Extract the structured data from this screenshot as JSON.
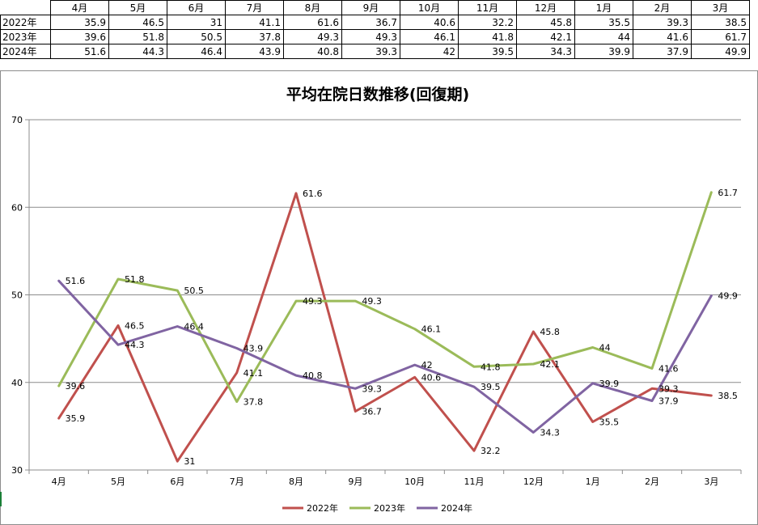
{
  "table": {
    "months": [
      "4月",
      "5月",
      "6月",
      "7月",
      "8月",
      "9月",
      "10月",
      "11月",
      "12月",
      "1月",
      "2月",
      "3月"
    ],
    "rows": [
      {
        "label": "2022年",
        "values": [
          "35.9",
          "46.5",
          "31",
          "41.1",
          "61.6",
          "36.7",
          "40.6",
          "32.2",
          "45.8",
          "35.5",
          "39.3",
          "38.5"
        ]
      },
      {
        "label": "2023年",
        "values": [
          "39.6",
          "51.8",
          "50.5",
          "37.8",
          "49.3",
          "49.3",
          "46.1",
          "41.8",
          "42.1",
          "44",
          "41.6",
          "61.7"
        ]
      },
      {
        "label": "2024年",
        "values": [
          "51.6",
          "44.3",
          "46.4",
          "43.9",
          "40.8",
          "39.3",
          "42",
          "39.5",
          "34.3",
          "39.9",
          "37.9",
          "49.9"
        ]
      }
    ]
  },
  "chart_data": {
    "type": "line",
    "title": "平均在院日数推移(回復期)",
    "categories": [
      "4月",
      "5月",
      "6月",
      "7月",
      "8月",
      "9月",
      "10月",
      "11月",
      "12月",
      "1月",
      "2月",
      "3月"
    ],
    "ylim": [
      30,
      70
    ],
    "yticks": [
      "30",
      "40",
      "50",
      "60",
      "70"
    ],
    "grid": true,
    "legend_position": "bottom",
    "series": [
      {
        "name": "2022年",
        "color": "#c0504d",
        "values": [
          35.9,
          46.5,
          31,
          41.1,
          61.6,
          36.7,
          40.6,
          32.2,
          45.8,
          35.5,
          39.3,
          38.5
        ]
      },
      {
        "name": "2023年",
        "color": "#9bbb59",
        "values": [
          39.6,
          51.8,
          50.5,
          37.8,
          49.3,
          49.3,
          46.1,
          41.8,
          42.1,
          44,
          41.6,
          61.7
        ]
      },
      {
        "name": "2024年",
        "color": "#8064a2",
        "values": [
          51.6,
          44.3,
          46.4,
          43.9,
          40.8,
          39.3,
          42,
          39.5,
          34.3,
          39.9,
          37.9,
          49.9
        ]
      }
    ]
  }
}
